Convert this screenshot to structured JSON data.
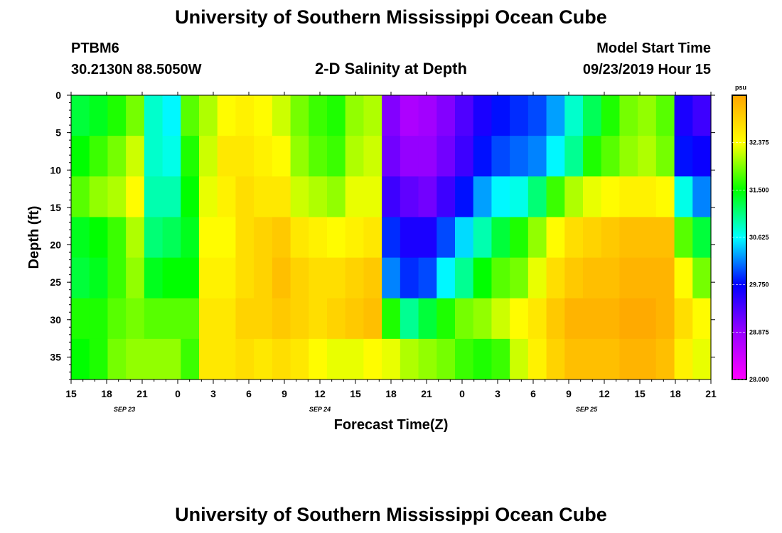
{
  "header": {
    "title": "University of Southern Mississippi Ocean Cube",
    "station_id": "PTBM6",
    "station_coords": "30.2130N 88.5050W",
    "chart_name": "2-D Salinity at Depth",
    "start_label": "Model Start Time",
    "start_value": "09/23/2019 Hour 15"
  },
  "footer": {
    "title": "University of Southern Mississippi Ocean Cube"
  },
  "chart_data": {
    "type": "heatmap",
    "title": "2-D Salinity at Depth",
    "xlabel": "Forecast Time(Z)",
    "ylabel": "Depth (ft)",
    "x_tick_labels": [
      "15",
      "18",
      "21",
      "0",
      "3",
      "6",
      "9",
      "12",
      "15",
      "18",
      "21",
      "0",
      "3",
      "6",
      "9",
      "12",
      "15",
      "18",
      "21"
    ],
    "x_date_labels": [
      {
        "label": "SEP 23",
        "tick_index": 1.5
      },
      {
        "label": "SEP 24",
        "tick_index": 7
      },
      {
        "label": "SEP 25",
        "tick_index": 14.5
      }
    ],
    "forecast_hours": [
      0,
      3,
      6,
      9,
      12,
      15,
      18,
      21,
      24,
      27,
      30,
      33,
      36,
      39,
      42,
      45,
      48,
      51,
      54
    ],
    "y_tick_labels": [
      "0",
      "5",
      "10",
      "15",
      "20",
      "25",
      "30",
      "35"
    ],
    "ylim": [
      0,
      38
    ],
    "colorbar": {
      "unit": "psu",
      "min": 28.0,
      "max": 33.25,
      "tick_labels": [
        "28.000",
        "28.875",
        "29.750",
        "30.625",
        "31.500",
        "32.375"
      ],
      "colors": [
        "#ff00ff",
        "#9900ff",
        "#0000ff",
        "#00ffff",
        "#00ff00",
        "#ffff00",
        "#ffa500"
      ]
    },
    "depths_ft": [
      0,
      5,
      10,
      15,
      20,
      25,
      30,
      35,
      38
    ],
    "salinity_psu": [
      [
        31.3,
        31.5,
        31.8,
        31.4,
        31.3,
        31.6,
        31.5
      ],
      [
        31.4,
        31.7,
        32.0,
        31.5,
        31.4,
        31.6,
        31.6
      ],
      [
        31.6,
        31.9,
        32.1,
        31.7,
        31.7,
        31.8,
        31.9
      ],
      [
        31.9,
        32.2,
        32.4,
        32.1,
        32.0,
        31.9,
        32.0
      ],
      [
        30.8,
        30.8,
        30.9,
        31.1,
        31.4,
        31.8,
        32.0
      ],
      [
        30.6,
        30.7,
        30.9,
        31.2,
        31.5,
        31.8,
        32.0
      ],
      [
        31.8,
        31.6,
        31.5,
        31.4,
        31.5,
        31.8,
        31.7
      ],
      [
        32.1,
        32.2,
        32.3,
        32.4,
        32.5,
        32.6,
        32.6
      ],
      [
        32.4,
        32.6,
        32.5,
        32.4,
        32.5,
        32.6,
        32.6
      ],
      [
        32.5,
        32.6,
        32.7,
        32.7,
        32.7,
        32.8,
        32.7
      ],
      [
        32.4,
        32.5,
        32.6,
        32.8,
        32.8,
        32.8,
        32.6
      ],
      [
        32.2,
        32.4,
        32.6,
        32.9,
        33.0,
        32.9,
        32.7
      ],
      [
        31.9,
        32.0,
        32.2,
        32.6,
        32.8,
        32.8,
        32.6
      ],
      [
        31.7,
        31.8,
        32.1,
        32.5,
        32.7,
        32.7,
        32.4
      ],
      [
        31.6,
        31.7,
        32.0,
        32.4,
        32.7,
        32.8,
        32.3
      ],
      [
        32.0,
        32.1,
        32.3,
        32.5,
        32.8,
        32.9,
        32.3
      ],
      [
        32.1,
        32.2,
        32.3,
        32.6,
        32.9,
        33.0,
        32.4
      ],
      [
        29.0,
        29.1,
        29.4,
        29.9,
        30.2,
        31.6,
        32.3
      ],
      [
        28.7,
        28.9,
        29.2,
        29.6,
        29.9,
        31.0,
        32.1
      ],
      [
        28.8,
        28.9,
        29.1,
        29.6,
        30.0,
        31.3,
        32.0
      ],
      [
        29.0,
        29.1,
        29.4,
        30.0,
        30.6,
        31.6,
        31.9
      ],
      [
        29.3,
        29.4,
        29.8,
        30.5,
        31.0,
        31.9,
        31.7
      ],
      [
        29.6,
        29.8,
        30.3,
        30.9,
        31.5,
        32.0,
        31.6
      ],
      [
        29.8,
        30.0,
        30.6,
        31.3,
        31.8,
        32.2,
        31.7
      ],
      [
        29.9,
        30.1,
        30.7,
        31.6,
        31.9,
        32.4,
        32.2
      ],
      [
        30.0,
        30.2,
        31.1,
        32.0,
        32.3,
        32.6,
        32.5
      ],
      [
        30.3,
        30.6,
        31.7,
        32.4,
        32.7,
        32.9,
        32.8
      ],
      [
        30.8,
        31.0,
        32.1,
        32.7,
        32.9,
        33.1,
        33.0
      ],
      [
        31.2,
        31.6,
        32.3,
        32.8,
        33.0,
        33.1,
        33.0
      ],
      [
        31.6,
        31.8,
        32.4,
        32.9,
        33.0,
        33.1,
        33.0
      ],
      [
        31.9,
        32.0,
        32.5,
        33.0,
        33.1,
        33.2,
        33.1
      ],
      [
        32.0,
        32.1,
        32.5,
        33.0,
        33.1,
        33.2,
        33.1
      ],
      [
        31.8,
        31.9,
        32.4,
        33.0,
        33.1,
        33.1,
        33.0
      ],
      [
        29.6,
        29.8,
        30.7,
        31.8,
        32.4,
        32.7,
        32.5
      ],
      [
        29.4,
        29.7,
        30.2,
        31.3,
        31.9,
        32.4,
        32.3
      ]
    ]
  }
}
